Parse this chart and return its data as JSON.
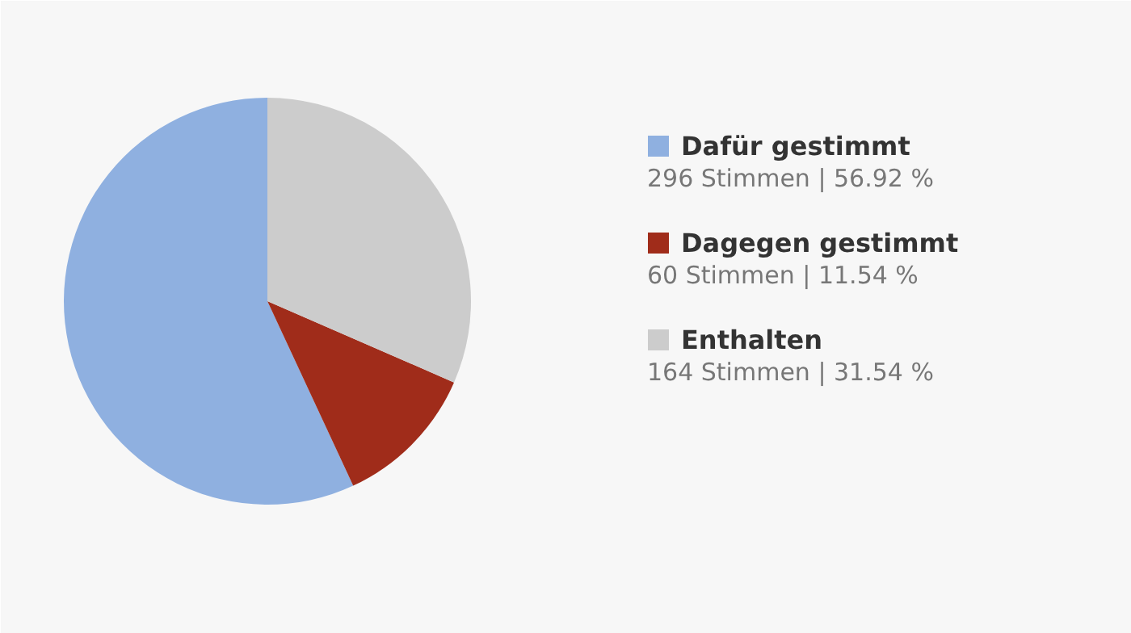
{
  "chart_data": {
    "type": "pie",
    "categories": [
      "Dafür gestimmt",
      "Dagegen gestimmt",
      "Enthalten"
    ],
    "values": [
      296,
      60,
      164
    ],
    "colors": [
      "#8fb0e0",
      "#a02c1a",
      "#cccccc"
    ],
    "value_labels": [
      "296 Stimmen | 56.92 %",
      "60 Stimmen | 11.54 %",
      "164 Stimmen | 31.54 %"
    ],
    "legend": "right"
  }
}
